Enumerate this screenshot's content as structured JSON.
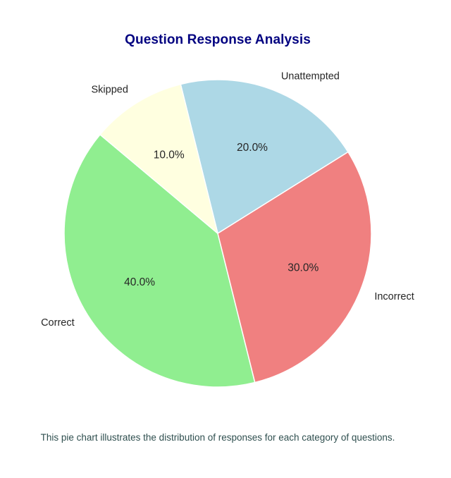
{
  "chart_data": {
    "type": "pie",
    "title": "Question Response Analysis",
    "caption": "This pie chart illustrates the distribution of responses for each category of questions.",
    "labels": [
      "Correct",
      "Incorrect",
      "Unattempted",
      "Skipped"
    ],
    "values": [
      40,
      30,
      20,
      10
    ],
    "percent_labels": [
      "40.0%",
      "30.0%",
      "20.0%",
      "10.0%"
    ],
    "colors": [
      "#90ee90",
      "#f08080",
      "#add8e6",
      "#ffffe0"
    ],
    "start_angle_deg": 140,
    "direction": "counterclockwise",
    "legend": "none"
  },
  "style": {
    "title_color": "#000080",
    "caption_color": "#2f4f4f",
    "label_color": "#262626",
    "wedge_edge_color": "#ffffff"
  }
}
